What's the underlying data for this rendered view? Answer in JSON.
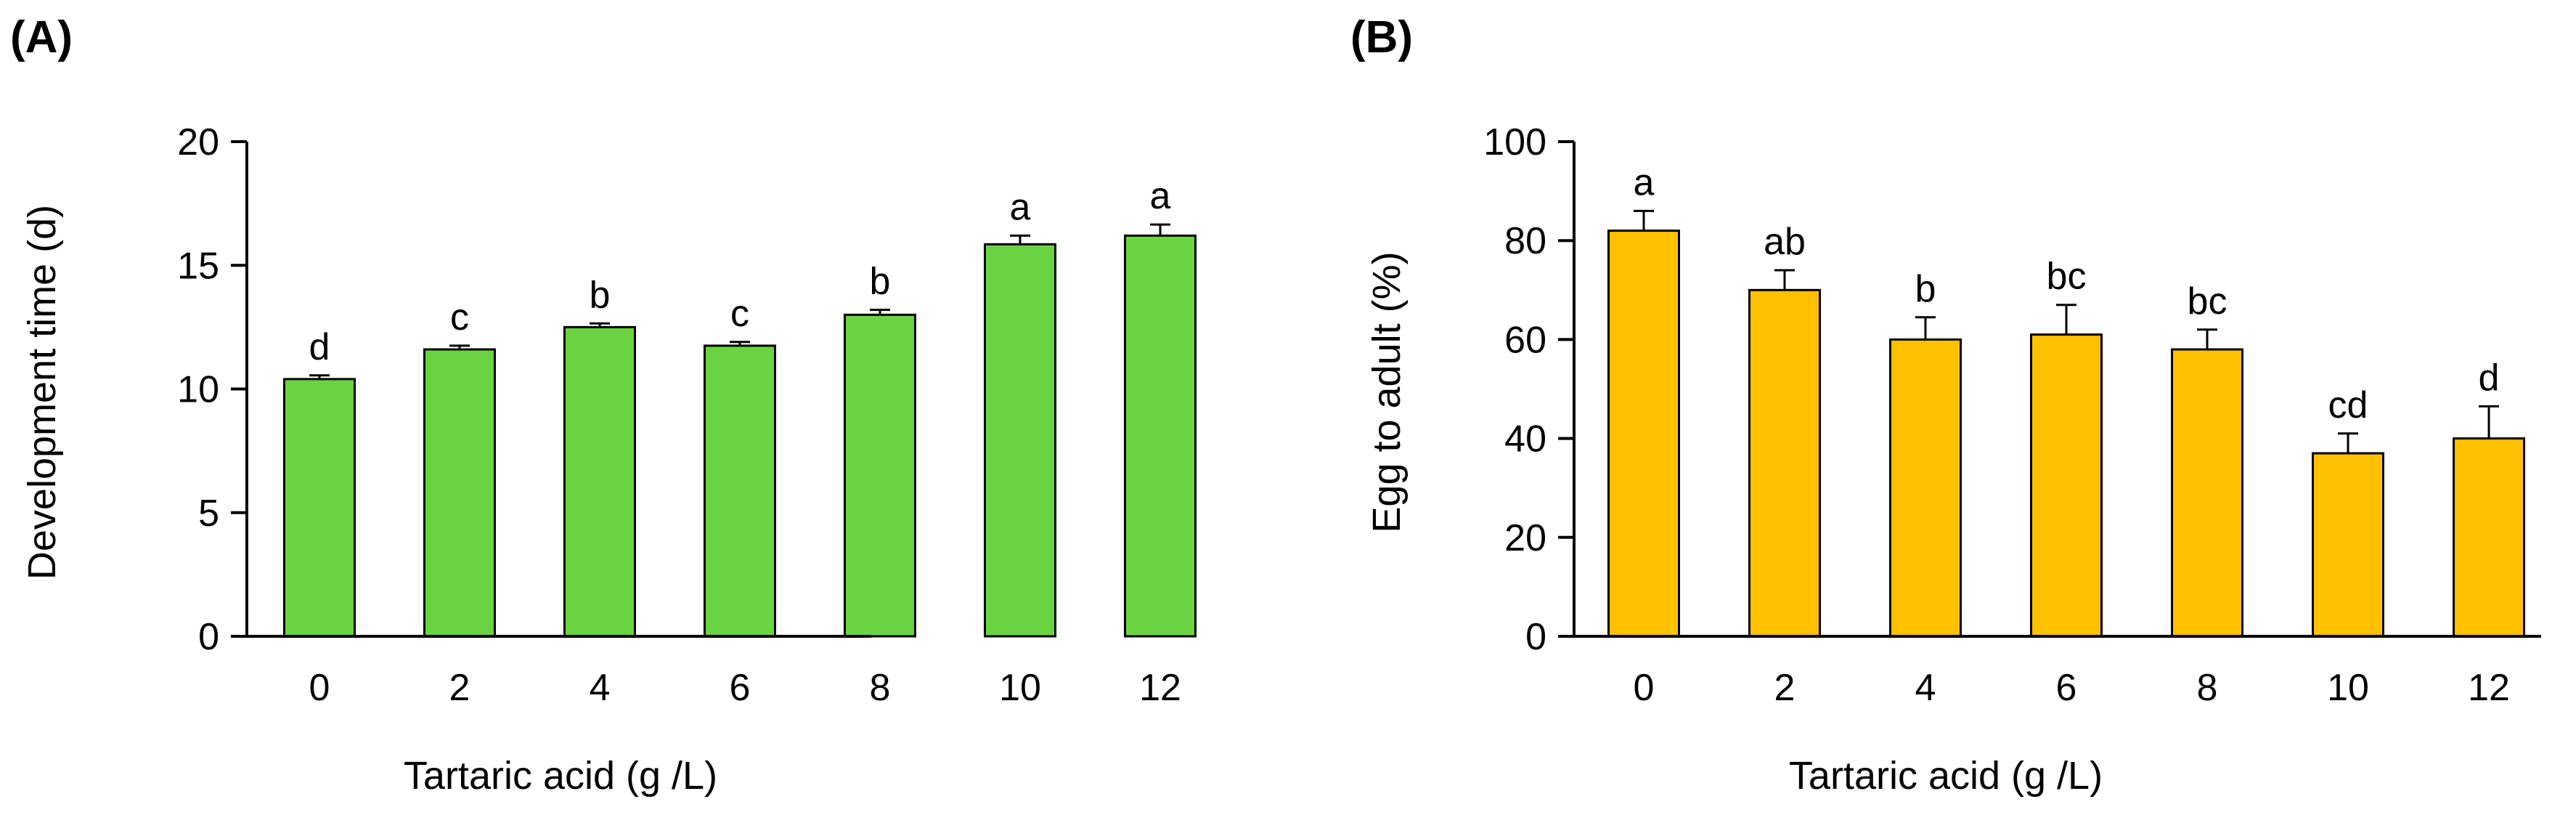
{
  "chart_data": [
    {
      "panel": "(A)",
      "type": "bar",
      "xlabel": "Tartaric acid (g /L)",
      "ylabel": "Development time (d)",
      "categories": [
        "0",
        "2",
        "4",
        "6",
        "8",
        "10",
        "12"
      ],
      "values": [
        10.4,
        11.6,
        12.5,
        11.75,
        13.0,
        15.85,
        16.2
      ],
      "errors": [
        0.15,
        0.15,
        0.15,
        0.15,
        0.2,
        0.35,
        0.45
      ],
      "significance": [
        "d",
        "c",
        "b",
        "c",
        "b",
        "a",
        "a"
      ],
      "ylim": [
        0,
        20
      ],
      "yticks": [
        0,
        5,
        10,
        15,
        20
      ],
      "bar_color": "#6ad440",
      "grid": false
    },
    {
      "panel": "(B)",
      "type": "bar",
      "xlabel": "Tartaric acid (g /L)",
      "ylabel": "Egg to adult (%)",
      "categories": [
        "0",
        "2",
        "4",
        "6",
        "8",
        "10",
        "12"
      ],
      "values": [
        82,
        70,
        60,
        61,
        58,
        37,
        40
      ],
      "errors": [
        4,
        4,
        4.5,
        6,
        4,
        4,
        6.5
      ],
      "significance": [
        "a",
        "ab",
        "b",
        "bc",
        "bc",
        "cd",
        "d"
      ],
      "ylim": [
        0,
        100
      ],
      "yticks": [
        0,
        20,
        40,
        60,
        80,
        100
      ],
      "bar_color": "#ffc000",
      "grid": false
    }
  ]
}
